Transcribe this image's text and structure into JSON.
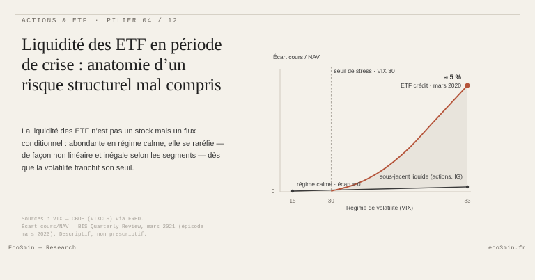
{
  "header": {
    "series": "ACTIONS & ETF",
    "separator": "·",
    "pillar": "PILIER 04 / 12"
  },
  "title": "Liquidité des ETF en période de crise : anatomie d’un risque structurel mal compris",
  "lede": "La liquidité des ETF n’est pas un stock mais un flux conditionnel : abondante en régime calme, elle se raréfie — de façon non linéaire et inégale selon les segments — dès que la volatilité franchit son seuil.",
  "sources": [
    "Sources : VIX — CBOE (VIXCLS) via FRED.",
    "Écart cours/NAV — BIS Quarterly Review, mars 2021 (épisode",
    "mars 2020). Descriptif, non prescriptif."
  ],
  "footer": {
    "brand": "Eco3min — Research",
    "site": "eco3min.fr"
  },
  "colors": {
    "etf_credit": "#b5543a",
    "underlying": "#3a3a3a",
    "fill": "#e8e4dc",
    "threshold": "#9a958d"
  },
  "chart_data": {
    "type": "line",
    "ylabel": "Écart cours / NAV",
    "xlabel": "Régime de volatilité (VIX)",
    "x_ticks": [
      "15",
      "30",
      "83"
    ],
    "y_ticks": [
      "0"
    ],
    "xlim": [
      15,
      83
    ],
    "threshold": {
      "x": 30,
      "label": "seuil de stress · VIX 30"
    },
    "series": [
      {
        "name": "ETF crédit · mars 2020",
        "x": [
          15,
          30,
          40,
          50,
          60,
          70,
          83
        ],
        "y": [
          0,
          0,
          0.35,
          1.0,
          2.0,
          3.3,
          5.0
        ],
        "end_value_label": "≈ 5 %",
        "end_label": "ETF crédit · mars 2020"
      },
      {
        "name": "sous-jacent liquide (actions, IG)",
        "x": [
          15,
          83
        ],
        "y": [
          0,
          0.2
        ],
        "end_label": "sous-jacent liquide (actions, IG)"
      }
    ],
    "annotations": [
      "régime calme · écart ≈ 0"
    ]
  }
}
